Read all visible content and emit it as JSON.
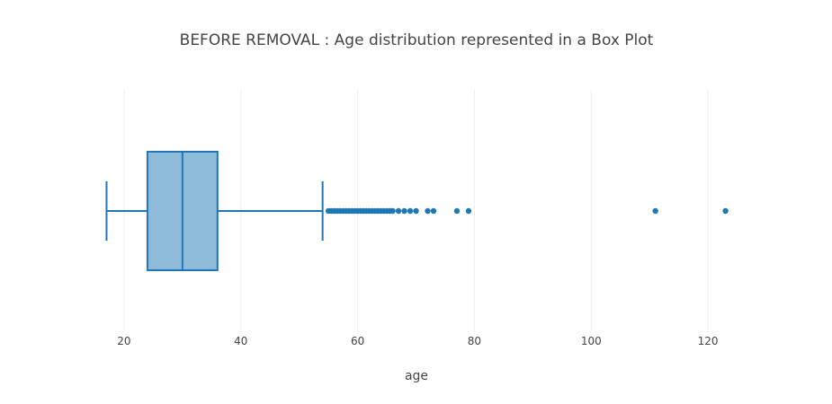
{
  "chart_data": {
    "type": "box",
    "title": "BEFORE REMOVAL : Age distribution represented in a Box Plot",
    "xlabel": "age",
    "ylabel": "",
    "orientation": "horizontal",
    "xlim": [
      14,
      132
    ],
    "xticks": [
      20,
      40,
      60,
      80,
      100,
      120
    ],
    "grid": true,
    "legend": "none",
    "box": {
      "min": 17,
      "q1": 24,
      "median": 30,
      "q3": 36,
      "max": 54
    },
    "outliers": [
      55,
      55.5,
      56,
      56.5,
      57,
      57.5,
      58,
      58.5,
      59,
      59.5,
      60,
      60.5,
      61,
      61.5,
      62,
      62.5,
      63,
      63.5,
      64,
      64.5,
      65,
      65.5,
      66,
      67,
      68,
      69,
      70,
      72,
      73,
      77,
      79,
      111,
      123
    ],
    "colors": {
      "line": "#1f77b4",
      "fill": "#8fbbdb",
      "grid": "#eeeeee",
      "text": "#444444"
    }
  }
}
